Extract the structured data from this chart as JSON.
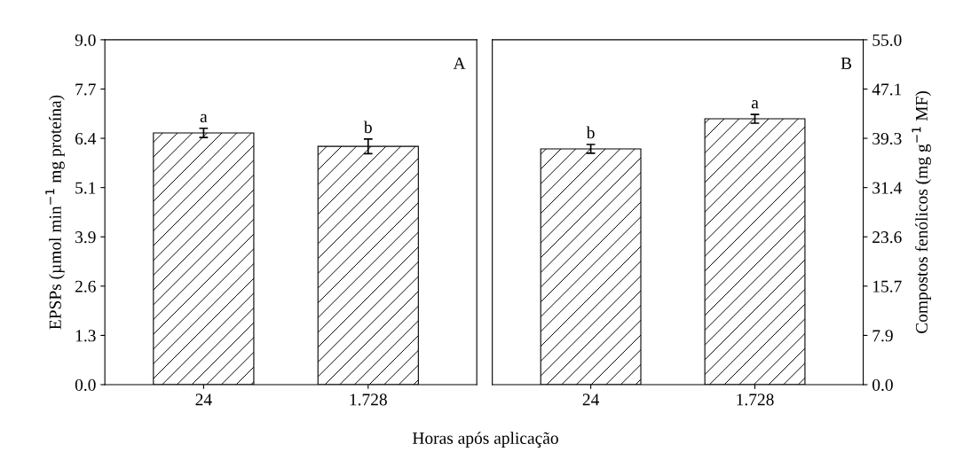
{
  "chart_data": [
    {
      "type": "bar",
      "categories": [
        "24",
        "1.728"
      ],
      "xlabel": "Horas após aplicação",
      "ylabel": "EPSPs (µmol min$^{−1}$ mg proteína)",
      "series": [
        {
          "color": "#000000",
          "values": [
            6.57,
            6.22
          ],
          "errors": [
            0.12,
            0.19
          ]
        }
      ],
      "ylim": [
        0,
        9.0
      ],
      "yticks": [
        {
          "value": 0,
          "label": "0.0"
        },
        {
          "value": 1.2857,
          "label": "1.3"
        },
        {
          "value": 2.5714,
          "label": "2.6"
        },
        {
          "value": 3.8571,
          "label": "3.9"
        },
        {
          "value": 5.1429,
          "label": "5.1"
        },
        {
          "value": 6.4286,
          "label": "6.4"
        },
        {
          "value": 7.7143,
          "label": "7.7"
        },
        {
          "value": 9.0,
          "label": "9.0"
        }
      ],
      "annotations": [
        "A",
        {
          "text": "a",
          "x": "24",
          "y": 6.69
        },
        {
          "text": "b",
          "x": "1.728",
          "y": 6.41
        }
      ],
      "grid": false
    },
    {
      "type": "bar",
      "categories": [
        "24",
        "1.728"
      ],
      "ylabel": "Compostos fenólicos (mg g$^{−1}$ MF)",
      "series": [
        {
          "color": "#000000",
          "values": [
            37.6,
            42.4
          ],
          "errors": [
            0.7,
            0.7
          ]
        }
      ],
      "ylim": [
        0,
        55.0
      ],
      "yticks": [
        {
          "value": 0,
          "label": "0.0"
        },
        {
          "value": 7.857,
          "label": "7.9"
        },
        {
          "value": 15.714,
          "label": "15.7"
        },
        {
          "value": 23.571,
          "label": "23.6"
        },
        {
          "value": 31.429,
          "label": "31.4"
        },
        {
          "value": 39.286,
          "label": "39.3"
        },
        {
          "value": 47.143,
          "label": "47.1"
        },
        {
          "value": 55.0,
          "label": "55.0"
        }
      ],
      "annotations": [
        "B",
        {
          "text": "b",
          "x": "24",
          "y": 38.3
        },
        {
          "text": "a",
          "x": "1.728",
          "y": 43.1
        }
      ],
      "grid": false
    }
  ]
}
